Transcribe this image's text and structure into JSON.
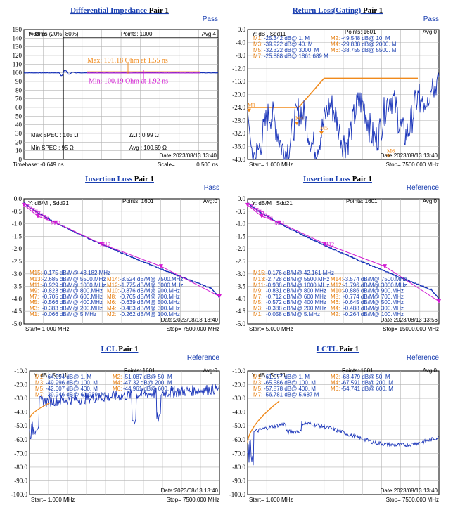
{
  "colors": {
    "trace": "#1530b8",
    "orange": "#f08a1c",
    "magenta": "#d21ad2",
    "title": "#1a3fb0",
    "grid": "#b4b4b4"
  },
  "chart_data": [
    {
      "type": "line",
      "title": "Differential Impedance",
      "pair": "Pair 1",
      "status": "Pass",
      "ylabel": "Y: Ohm",
      "ylim": [
        0,
        150
      ],
      "yticks": [
        0,
        10,
        20,
        30,
        40,
        50,
        60,
        70,
        80,
        90,
        100,
        110,
        120,
        130,
        140,
        150
      ],
      "header": {
        "tr": "Tr=35  ps (20%_80%)",
        "points": "Points: 1000",
        "avg": "Avg:4"
      },
      "specs": {
        "max_spec": "Max SPEC : 105 Ω",
        "min_spec": "Min SPEC : 95  Ω",
        "delta": "ΔΩ : 0.99 Ω",
        "avg": "Avg : 100.69 Ω"
      },
      "annotations": {
        "max": "Max: 101.18 Ohm at 1.55 ns",
        "min": "Min: 100.19 Ohm at 1.92 ns"
      },
      "date": "Date:2023/08/13 13:40",
      "timebase": "Timebase: -0.649 ns",
      "scale": "Scale=",
      "scale_value": "0.500 ns",
      "series": [
        {
          "values_description": "impedance ~100 Ohm with step from 0 at ~-0.45 ns"
        }
      ]
    },
    {
      "type": "line",
      "title": "Return Loss(Gating)",
      "pair": "Pair 1",
      "status": "Pass",
      "ylabel": "Y: dB , Sdd11",
      "ylim": [
        -40,
        0
      ],
      "yticks": [
        0,
        -4,
        -8,
        -12,
        -16,
        -20,
        -24,
        -28,
        -32,
        -36,
        -40
      ],
      "yticklabels": [
        "0.0",
        "-4.0",
        "-8.0",
        "-12.0",
        "-16.0",
        "-20.0",
        "-24.0",
        "-28.0",
        "-32.0",
        "-36.0",
        "-40.0"
      ],
      "header": {
        "points": "Points: 1601",
        "avg": "Avg:0"
      },
      "markers": [
        {
          "label": "M1:",
          "value": "-25.342 dB@ 1. M"
        },
        {
          "label": "M2:",
          "value": "-49.548 dB@ 10. M"
        },
        {
          "label": "M3:",
          "value": "-39.922 dB@ 40. M"
        },
        {
          "label": "M4:",
          "value": "-29.838 dB@ 2000. M"
        },
        {
          "label": "M5:",
          "value": "-32.322 dB@ 3000. M"
        },
        {
          "label": "M6:",
          "value": "-38.755 dB@ 5500. M"
        },
        {
          "label": "M7:",
          "value": "-25.888 dB@ 1861.689 M"
        }
      ],
      "date": "Date:2023/08/13 13:40",
      "start": "Start= 1.000 MHz",
      "stop": "Stop=  7500.000 MHz",
      "limit_line": {
        "x_mhz": [
          1,
          2000,
          3000,
          7500
        ],
        "y": [
          -24,
          -24,
          -15,
          -15
        ]
      }
    },
    {
      "type": "line",
      "title": "Insertion  Loss",
      "pair": "Pair 1",
      "status": "Pass",
      "ylabel": "Y: dB/M , Sdd21",
      "ylim": [
        -5,
        0
      ],
      "yticks": [
        0,
        -0.5,
        -1,
        -1.5,
        -2,
        -2.5,
        -3,
        -3.5,
        -4,
        -4.5,
        -5
      ],
      "yticklabels": [
        "0.0",
        "-0.5",
        "-1.0",
        "-1.5",
        "-2.0",
        "-2.5",
        "-3.0",
        "-3.5",
        "-4.0",
        "-4.5",
        "-5.0"
      ],
      "header": {
        "points": "Points: 1601",
        "avg": "Avg:0"
      },
      "markers": [
        {
          "label": "M15:",
          "value": "-0.175 dB/M@ 43.182 MHz"
        },
        {
          "label": "M13:",
          "value": "-2.685 dB/M@ 5500.MHz"
        },
        {
          "label": "M14:",
          "value": "-3.524 dB/M@ 7500.MHz"
        },
        {
          "label": "M11:",
          "value": "-0.929 dB/M@ 1000.MHz"
        },
        {
          "label": "M12:",
          "value": "-1.775 dB/M@ 3000.MHz"
        },
        {
          "label": "M9:",
          "value": "-0.823 dB/M@ 800.MHz"
        },
        {
          "label": "M10:",
          "value": "-0.876 dB/M@ 900.MHz"
        },
        {
          "label": "M7:",
          "value": "-0.705 dB/M@ 600.MHz"
        },
        {
          "label": "M8:",
          "value": "-0.765 dB/M@ 700.MHz"
        },
        {
          "label": "M5:",
          "value": "-0.566 dB/M@ 400.MHz"
        },
        {
          "label": "M6:",
          "value": "-0.639 dB/M@ 500.MHz"
        },
        {
          "label": "M3:",
          "value": "-0.383 dB/M@ 200.MHz"
        },
        {
          "label": "M4:",
          "value": "-0.483 dB/M@ 300.MHz"
        },
        {
          "label": "M1:",
          "value": "-0.066 dB/M@ 5.MHz"
        },
        {
          "label": "M2:",
          "value": "-0.262 dB/M@ 100.MHz"
        }
      ],
      "date": "Date:2023/08/13 13:40",
      "start": "Start= 1.000 MHz",
      "stop": "Stop=  7500.000 MHz"
    },
    {
      "type": "line",
      "title": "Insertion  Loss",
      "pair": "Pair 1",
      "status": "Reference",
      "ylabel": "Y: dB/M , Sdd21",
      "ylim": [
        -5,
        0
      ],
      "yticks": [
        0,
        -0.5,
        -1,
        -1.5,
        -2,
        -2.5,
        -3,
        -3.5,
        -4,
        -4.5,
        -5
      ],
      "yticklabels": [
        "0.0",
        "-0.5",
        "-1.0",
        "-1.5",
        "-2.0",
        "-2.5",
        "-3.0",
        "-3.5",
        "-4.0",
        "-4.5",
        "-5.0"
      ],
      "header": {
        "points": "Points: 1601",
        "avg": "Avg:0"
      },
      "markers": [
        {
          "label": "M15:",
          "value": "-0.176 dB/M@ 42.161 MHz"
        },
        {
          "label": "M13:",
          "value": "-2.728 dB/M@ 5500.MHz"
        },
        {
          "label": "M14:",
          "value": "-3.574 dB/M@ 7500.MHz"
        },
        {
          "label": "M11:",
          "value": "-0.938 dB/M@ 1000.MHz"
        },
        {
          "label": "M12:",
          "value": "-1.796 dB/M@ 3000.MHz"
        },
        {
          "label": "M9:",
          "value": "-0.831 dB/M@ 800.MHz"
        },
        {
          "label": "M10:",
          "value": "-0.886 dB/M@ 900.MHz"
        },
        {
          "label": "M7:",
          "value": "-0.712 dB/M@ 600.MHz"
        },
        {
          "label": "M8:",
          "value": "-0.774 dB/M@ 700.MHz"
        },
        {
          "label": "M5:",
          "value": "-0.572 dB/M@ 400.MHz"
        },
        {
          "label": "M6:",
          "value": "-0.645 dB/M@ 500.MHz"
        },
        {
          "label": "M3:",
          "value": "-0.388 dB/M@ 200.MHz"
        },
        {
          "label": "M4:",
          "value": "-0.488 dB/M@ 300.MHz"
        },
        {
          "label": "M1:",
          "value": "-0.058 dB/M@ 5.MHz"
        },
        {
          "label": "M2:",
          "value": "-0.264 dB/M@ 100.MHz"
        }
      ],
      "date": "Date:2023/08/13 13:56",
      "start": "Start= 5.000 MHz",
      "stop": "Stop=  15000.000 MHz"
    },
    {
      "type": "line",
      "title": "LCL",
      "pair": "Pair 1",
      "status": "Reference",
      "ylabel": "Y: dB , Sdc11",
      "ylim": [
        -100,
        -10
      ],
      "yticks": [
        -10,
        -20,
        -30,
        -40,
        -50,
        -60,
        -70,
        -80,
        -90,
        -100
      ],
      "yticklabels": [
        "-10.0",
        "-20.0",
        "-30.0",
        "-40.0",
        "-50.0",
        "-60.0",
        "-70.0",
        "-80.0",
        "-90.0",
        "-100.0"
      ],
      "header": {
        "points": "Points: 1601",
        "avg": "Avg:0"
      },
      "markers": [
        {
          "label": "M1:",
          "value": "-64.294 dB@ 1. M"
        },
        {
          "label": "M2:",
          "value": "-51.087 dB@ 50. M"
        },
        {
          "label": "M3:",
          "value": "-49.996 dB@ 100. M"
        },
        {
          "label": "M4:",
          "value": "-47.32 dB@ 200. M"
        },
        {
          "label": "M5:",
          "value": "-42.607 dB@ 400. M"
        },
        {
          "label": "M6:",
          "value": "-44.961 dB@ 600. M"
        },
        {
          "label": "M7:",
          "value": "-39.946 dB@ 61.929. M"
        }
      ],
      "date": "Date:2023/08/13 13:40",
      "start": "Start= 1.000 MHz",
      "stop": "Stop=  7500.000 MHz"
    },
    {
      "type": "line",
      "title": "LCTL",
      "pair": "Pair 1",
      "status": "Reference",
      "ylabel": "Y: dB , Sdc21",
      "ylim": [
        -100,
        -10
      ],
      "yticks": [
        -10,
        -20,
        -30,
        -40,
        -50,
        -60,
        -70,
        -80,
        -90,
        -100
      ],
      "yticklabels": [
        "-10.0",
        "-20.0",
        "-30.0",
        "-40.0",
        "-50.0",
        "-60.0",
        "-70.0",
        "-80.0",
        "-90.0",
        "-100.0"
      ],
      "header": {
        "points": "Points: 1601",
        "avg": "Avg:0"
      },
      "markers": [
        {
          "label": "M1:",
          "value": "-61.977 dB@ 1. M"
        },
        {
          "label": "M2:",
          "value": "-68.479 dB@ 50. M"
        },
        {
          "label": "M3:",
          "value": "-65.586 dB@ 100. M"
        },
        {
          "label": "M4:",
          "value": "-67.591 dB@ 200. M"
        },
        {
          "label": "M5:",
          "value": "-57.878 dB@ 400. M"
        },
        {
          "label": "M6:",
          "value": "-54.741 dB@ 600. M"
        },
        {
          "label": "M7:",
          "value": "-56.781 dB@ 5.687 M"
        }
      ],
      "date": "Date:2023/08/13 13:40",
      "start": "Start= 1.000 MHz",
      "stop": "Stop=  7500.000 MHz"
    }
  ]
}
